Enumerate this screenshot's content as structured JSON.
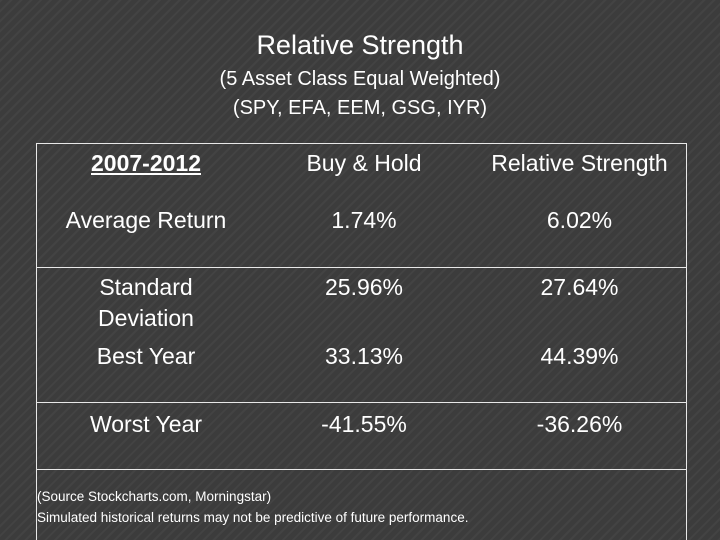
{
  "slide": {
    "title": "Relative Strength",
    "subtitle_line1": "(5 Asset Class Equal Weighted)",
    "subtitle_line2": "(SPY, EFA, EEM, GSG, IYR)"
  },
  "table": {
    "headers": [
      "2007-2012",
      "Buy & Hold",
      "Relative Strength"
    ],
    "rows": [
      {
        "label": "Average Return",
        "buy_hold": "1.74%",
        "relative_strength": "6.02%"
      },
      {
        "label_line1": "Standard",
        "label_line2": "Deviation",
        "buy_hold": "25.96%",
        "relative_strength": "27.64%"
      },
      {
        "label": "Best Year",
        "buy_hold": "33.13%",
        "relative_strength": "44.39%"
      },
      {
        "label": "Worst Year",
        "buy_hold": "-41.55%",
        "relative_strength": "-36.26%"
      }
    ]
  },
  "footnotes": {
    "source": "(Source Stockcharts.com, Morningstar)",
    "disclaimer": "Simulated historical returns may not be predictive of future performance."
  },
  "colors": {
    "background": "#3c3c3c",
    "text": "#ffffff",
    "grid": "#e8e8e8"
  }
}
